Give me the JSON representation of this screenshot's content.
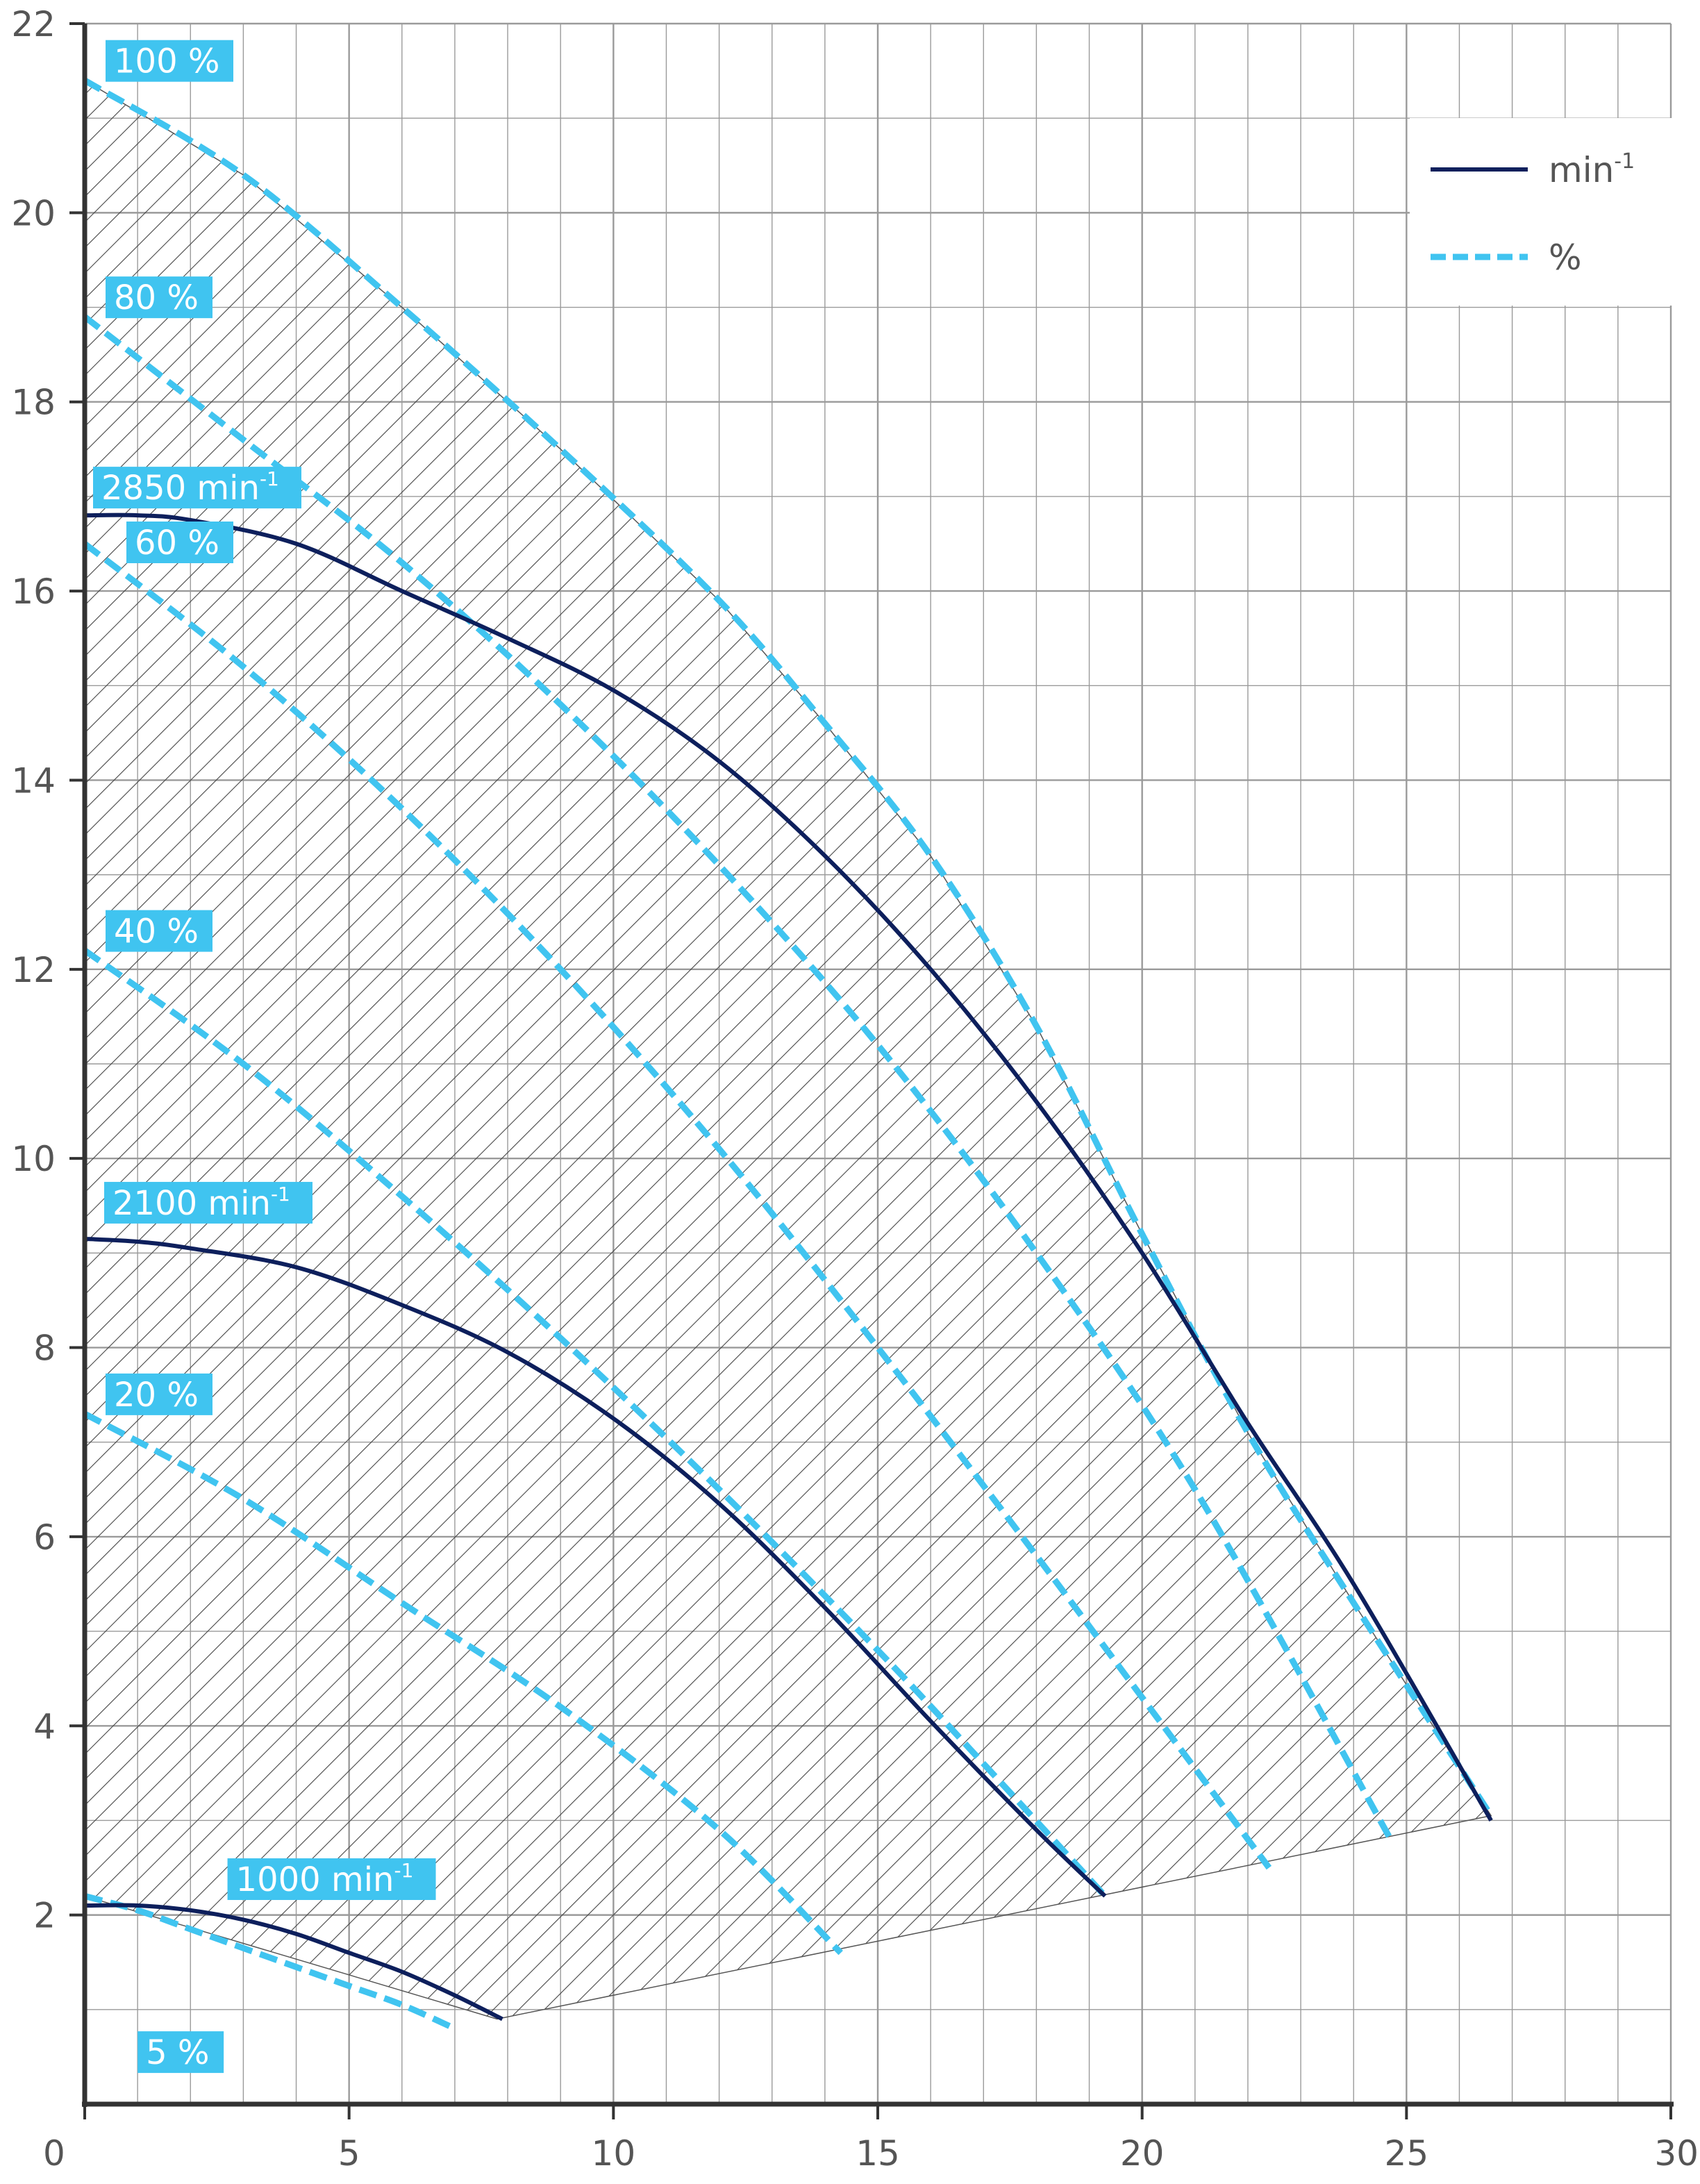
{
  "chart_data": {
    "type": "line",
    "title": "",
    "xlabel": "",
    "ylabel": "",
    "xlim": [
      0,
      30
    ],
    "ylim": [
      0,
      22
    ],
    "x_ticks": [
      "0",
      "5",
      "10",
      "15",
      "20",
      "25",
      "30"
    ],
    "y_ticks": [
      "2",
      "4",
      "6",
      "8",
      "10",
      "12",
      "14",
      "16",
      "18",
      "20",
      "22"
    ],
    "grid": true,
    "legend_position": "top-right",
    "legend": [
      {
        "label": "min",
        "sup": "-1",
        "style": "solid",
        "color": "#0d1f5c"
      },
      {
        "label": "%",
        "style": "dashed",
        "color": "#40c4f0"
      }
    ],
    "colors": {
      "speed_curve": "#0d1f5c",
      "percent_curve": "#40c4f0",
      "label_bg": "#40c4f0",
      "hatch": "#444444",
      "grid": "#9a9a9a",
      "axis": "#333333"
    },
    "operating_region": {
      "hatched": true,
      "boundary": [
        [
          0,
          21.4
        ],
        [
          3,
          20.4
        ],
        [
          6,
          19.0
        ],
        [
          9,
          17.5
        ],
        [
          12,
          15.9
        ],
        [
          14,
          14.6
        ],
        [
          16,
          13.2
        ],
        [
          18,
          11.4
        ],
        [
          20,
          9.2
        ],
        [
          22,
          7.1
        ],
        [
          24,
          5.3
        ],
        [
          26.6,
          3.05
        ],
        [
          7.8,
          0.9
        ],
        [
          0,
          2.2
        ]
      ]
    },
    "series": [
      {
        "name": "2850 min",
        "sup": "-1",
        "style": "solid",
        "x": [
          0,
          1,
          2,
          4,
          6,
          8,
          10,
          12,
          14,
          16,
          18,
          20,
          22,
          24,
          26.6
        ],
        "y": [
          16.8,
          16.8,
          16.75,
          16.5,
          16.0,
          15.5,
          14.95,
          14.2,
          13.2,
          12.0,
          10.6,
          9.0,
          7.2,
          5.5,
          3.0
        ]
      },
      {
        "name": "2100 min",
        "sup": "-1",
        "style": "solid",
        "x": [
          0,
          1,
          2,
          4,
          6,
          8,
          10,
          12,
          14,
          16,
          18,
          19.3
        ],
        "y": [
          9.15,
          9.12,
          9.05,
          8.85,
          8.45,
          7.95,
          7.25,
          6.35,
          5.25,
          4.05,
          2.9,
          2.2
        ]
      },
      {
        "name": "1000 min",
        "sup": "-1",
        "style": "solid",
        "x": [
          0,
          1,
          2,
          3,
          4,
          5,
          6,
          7,
          7.9
        ],
        "y": [
          2.1,
          2.1,
          2.05,
          1.95,
          1.8,
          1.6,
          1.4,
          1.15,
          0.9
        ]
      },
      {
        "name": "100 %",
        "style": "dashed",
        "x": [
          0,
          3,
          6,
          9,
          12,
          14,
          16,
          18,
          20,
          22,
          24,
          26.6
        ],
        "y": [
          21.4,
          20.4,
          19.0,
          17.5,
          15.9,
          14.6,
          13.2,
          11.4,
          9.2,
          7.1,
          5.3,
          3.05
        ]
      },
      {
        "name": "80 %",
        "style": "dashed",
        "x": [
          0,
          3,
          6,
          9,
          12,
          15,
          18,
          21,
          24.7
        ],
        "y": [
          18.9,
          17.6,
          16.3,
          14.8,
          13.1,
          11.2,
          9.0,
          6.5,
          2.8
        ]
      },
      {
        "name": "60 %",
        "style": "dashed",
        "x": [
          0,
          3,
          6,
          9,
          12,
          15,
          18,
          20,
          22.4
        ],
        "y": [
          16.5,
          15.2,
          13.7,
          12.0,
          10.1,
          8.0,
          5.8,
          4.3,
          2.5
        ]
      },
      {
        "name": "40 %",
        "style": "dashed",
        "x": [
          0,
          3,
          6,
          9,
          12,
          15,
          17,
          19.3
        ],
        "y": [
          12.2,
          11.0,
          9.6,
          8.1,
          6.5,
          4.8,
          3.6,
          2.2
        ]
      },
      {
        "name": "20 %",
        "style": "dashed",
        "x": [
          0,
          3,
          6,
          9,
          12,
          14.3
        ],
        "y": [
          7.3,
          6.4,
          5.3,
          4.2,
          2.9,
          1.6
        ]
      },
      {
        "name": "5 %",
        "style": "dashed",
        "x": [
          0,
          1,
          2,
          3,
          4,
          5,
          6,
          7
        ],
        "y": [
          2.2,
          2.05,
          1.85,
          1.65,
          1.45,
          1.25,
          1.05,
          0.8
        ]
      }
    ],
    "annotations": [
      {
        "text": "100 %",
        "sup": "",
        "series": "100 %"
      },
      {
        "text": "80 %",
        "sup": "",
        "series": "80 %"
      },
      {
        "text": "2850 min",
        "sup": "-1",
        "series": "2850 min"
      },
      {
        "text": "60 %",
        "sup": "",
        "series": "60 %"
      },
      {
        "text": "40 %",
        "sup": "",
        "series": "40 %"
      },
      {
        "text": "2100 min",
        "sup": "-1",
        "series": "2100 min"
      },
      {
        "text": "20 %",
        "sup": "",
        "series": "20 %"
      },
      {
        "text": "1000 min",
        "sup": "-1",
        "series": "1000 min"
      },
      {
        "text": "5 %",
        "sup": "",
        "series": "5 %"
      }
    ]
  }
}
